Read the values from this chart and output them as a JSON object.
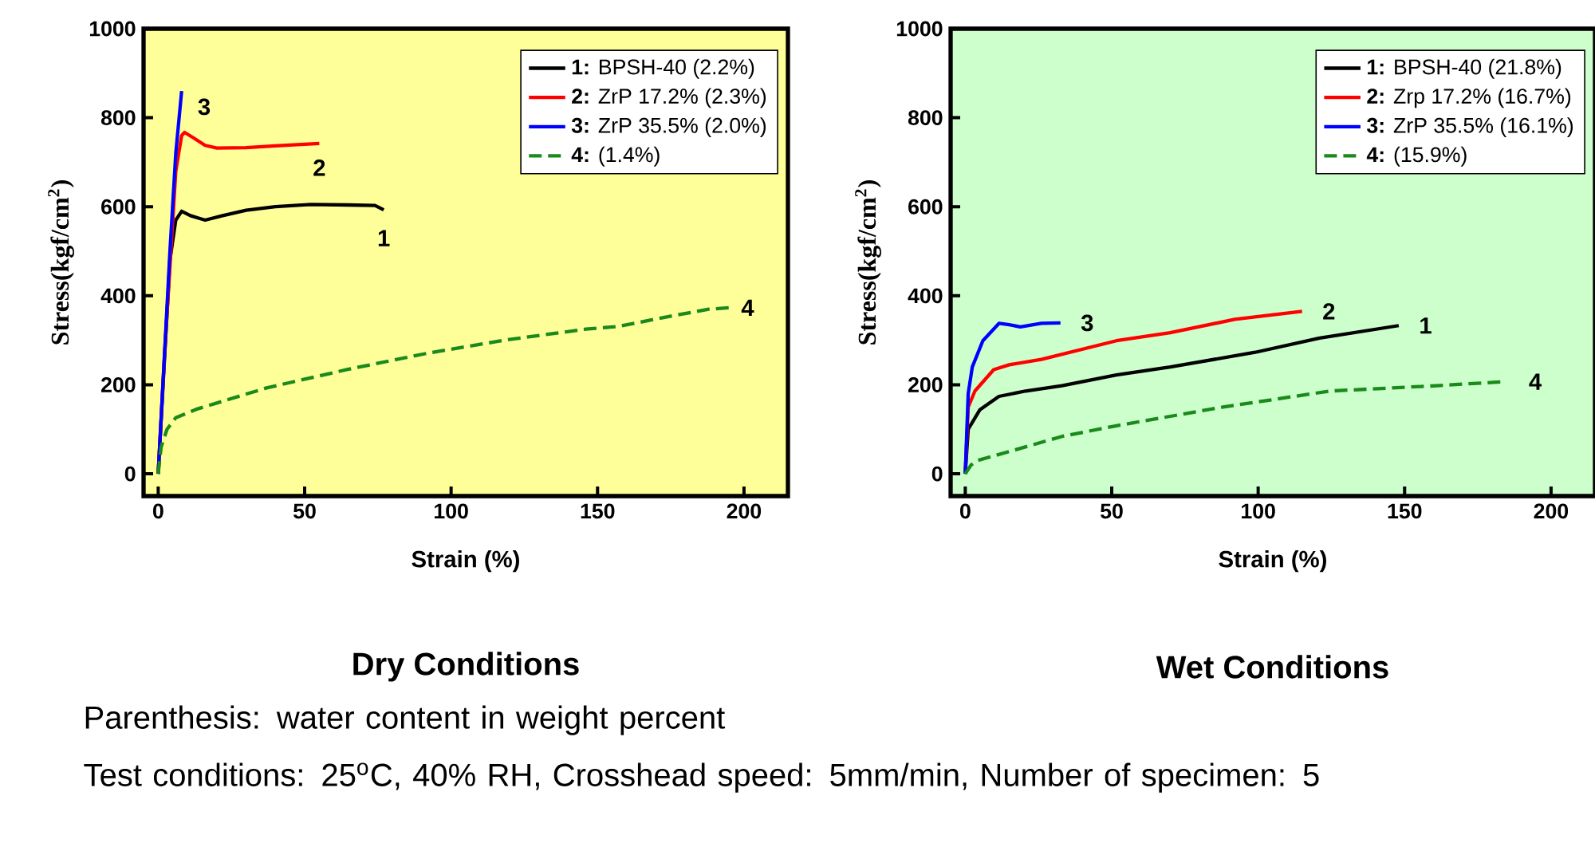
{
  "chart_data": [
    {
      "type": "line",
      "title": "Dry Conditions",
      "xlabel": "Strain (%)",
      "ylabel": "Stress(kgf/cm$^{2}$)",
      "xlim": [
        -5,
        215
      ],
      "ylim": [
        -50,
        1000
      ],
      "xticks": [
        0,
        50,
        100,
        150,
        200
      ],
      "yticks": [
        0,
        200,
        400,
        600,
        800,
        1000
      ],
      "legend": "top right",
      "grid": false,
      "marker": "none",
      "series": [
        {
          "name": "**1:** BPSH-40 (2.2%)",
          "color": "#000000",
          "x": [
            0,
            2,
            4,
            6,
            8,
            11,
            16,
            22,
            30,
            40,
            52,
            65,
            74,
            77
          ],
          "values": [
            0,
            null,
            480,
            570,
            590,
            580,
            570,
            580,
            592,
            600,
            605,
            604,
            603,
            593
          ]
        },
        {
          "name": "**2:** ZrP 17.2% (2.3%)",
          "color": "#ff0000",
          "x": [
            0,
            2,
            4,
            6,
            8,
            9,
            12,
            16,
            20,
            30,
            40,
            55
          ],
          "values": [
            0,
            250,
            null,
            680,
            760,
            767,
            755,
            738,
            732,
            733,
            737,
            742
          ]
        },
        {
          "name": "**3:** ZrP 35.5% (2.0%)",
          "color": "#0000ff",
          "x": [
            0,
            2,
            4,
            6,
            8
          ],
          "values": [
            0,
            250,
            500,
            720,
            860
          ]
        },
        {
          "name": "**4:** (1.4%)",
          "color": "#1a8a1a",
          "line_style": "dashed",
          "x": [
            0,
            1,
            3,
            6,
            13,
            37,
            65,
            92,
            119,
            146,
            157,
            174,
            188,
            195
          ],
          "values": [
            0,
            60,
            100,
            126,
            145,
            193,
            235,
            271,
            301,
            325,
            331,
            353,
            370,
            373
          ]
        }
      ],
      "annotations": [
        {
          "text": "3",
          "x": 8,
          "y": 860
        },
        {
          "text": "2",
          "x": 55,
          "y": 742
        },
        {
          "text": "1",
          "x": 77,
          "y": 593
        },
        {
          "text": "4",
          "x": 195,
          "y": 373
        },
        "Parenthesis: water content in weight percent",
        "Test conditions: 25$^{o}$C, 40% RH, Crosshead speed: 5mm/min, Number of specimen: 5"
      ]
    },
    {
      "type": "line",
      "title": "Wet Conditions",
      "xlabel": "Strain (%)",
      "ylabel": "Stress(kgf/cm$^{2}$)",
      "xlim": [
        -5,
        215
      ],
      "ylim": [
        -50,
        1000
      ],
      "xticks": [
        0,
        50,
        100,
        150,
        200
      ],
      "yticks": [
        0,
        200,
        400,
        600,
        800,
        1000
      ],
      "legend": "top right",
      "grid": false,
      "marker": "none",
      "series": [
        {
          "name": "**1:** BPSH-40 (21.8%)",
          "color": "#000000",
          "x": [
            0,
            1,
            5,
            11.5,
            20.6,
            33,
            51.6,
            70,
            99,
            121,
            148
          ],
          "values": [
            0,
            100,
            144,
            174,
            186,
            198,
            222,
            240,
            273,
            305,
            333
          ]
        },
        {
          "name": "**2:** Zrp 17.2% (16.7%)",
          "color": "#ff0000",
          "x": [
            0,
            1,
            3.3,
            9.7,
            15,
            26,
            51.6,
            70,
            92,
            115
          ],
          "values": [
            0,
            150,
            186,
            234,
            245,
            257,
            299,
            317,
            347,
            365
          ]
        },
        {
          "name": "**3:** ZrP 35.5% (16.1%)",
          "color": "#0000ff",
          "x": [
            0,
            1,
            2.4,
            6,
            11.5,
            15,
            18.8,
            26,
            32.5
          ],
          "values": [
            0,
            180,
            240,
            299,
            338,
            335,
            330,
            338,
            339
          ]
        },
        {
          "name": "**4:** (15.9%)",
          "color": "#1a8a1a",
          "line_style": "dashed",
          "x": [
            0,
            2,
            4.2,
            15,
            33,
            51.6,
            88,
            124.6,
            161,
            184
          ],
          "values": [
            0,
            20,
            30,
            50,
            84,
            108,
            150,
            186,
            198,
            207
          ]
        }
      ],
      "annotations": [
        {
          "text": "3",
          "x": 32.5,
          "y": 339
        },
        {
          "text": "2",
          "x": 115,
          "y": 365
        },
        {
          "text": "1",
          "x": 148,
          "y": 333
        },
        {
          "text": "4",
          "x": 184,
          "y": 207
        }
      ]
    }
  ]
}
